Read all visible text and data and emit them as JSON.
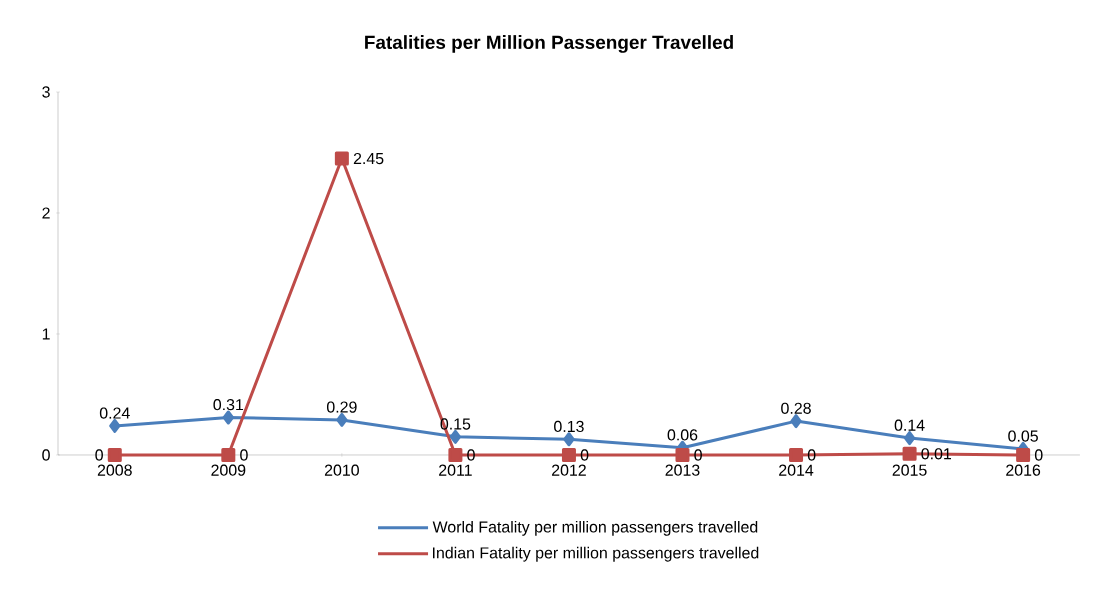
{
  "chart_data": {
    "type": "line",
    "title": "Fatalities per Million Passenger Travelled",
    "categories": [
      "2008",
      "2009",
      "2010",
      "2011",
      "2012",
      "2013",
      "2014",
      "2015",
      "2016"
    ],
    "series": [
      {
        "name": "World Fatality per million passengers travelled",
        "color": "#4a7ebb",
        "marker": "diamond",
        "values": [
          0.24,
          0.31,
          0.29,
          0.15,
          0.13,
          0.06,
          0.28,
          0.14,
          0.05
        ]
      },
      {
        "name": "Indian Fatality per million passengers travelled",
        "color": "#be4b48",
        "marker": "square",
        "values": [
          0,
          0,
          2.45,
          0,
          0,
          0,
          0,
          0.01,
          0
        ]
      }
    ],
    "ylim": [
      0,
      3
    ],
    "yticks": [
      0,
      1,
      2,
      3
    ],
    "data_labels": true,
    "legend": "bottom",
    "grid": false
  }
}
